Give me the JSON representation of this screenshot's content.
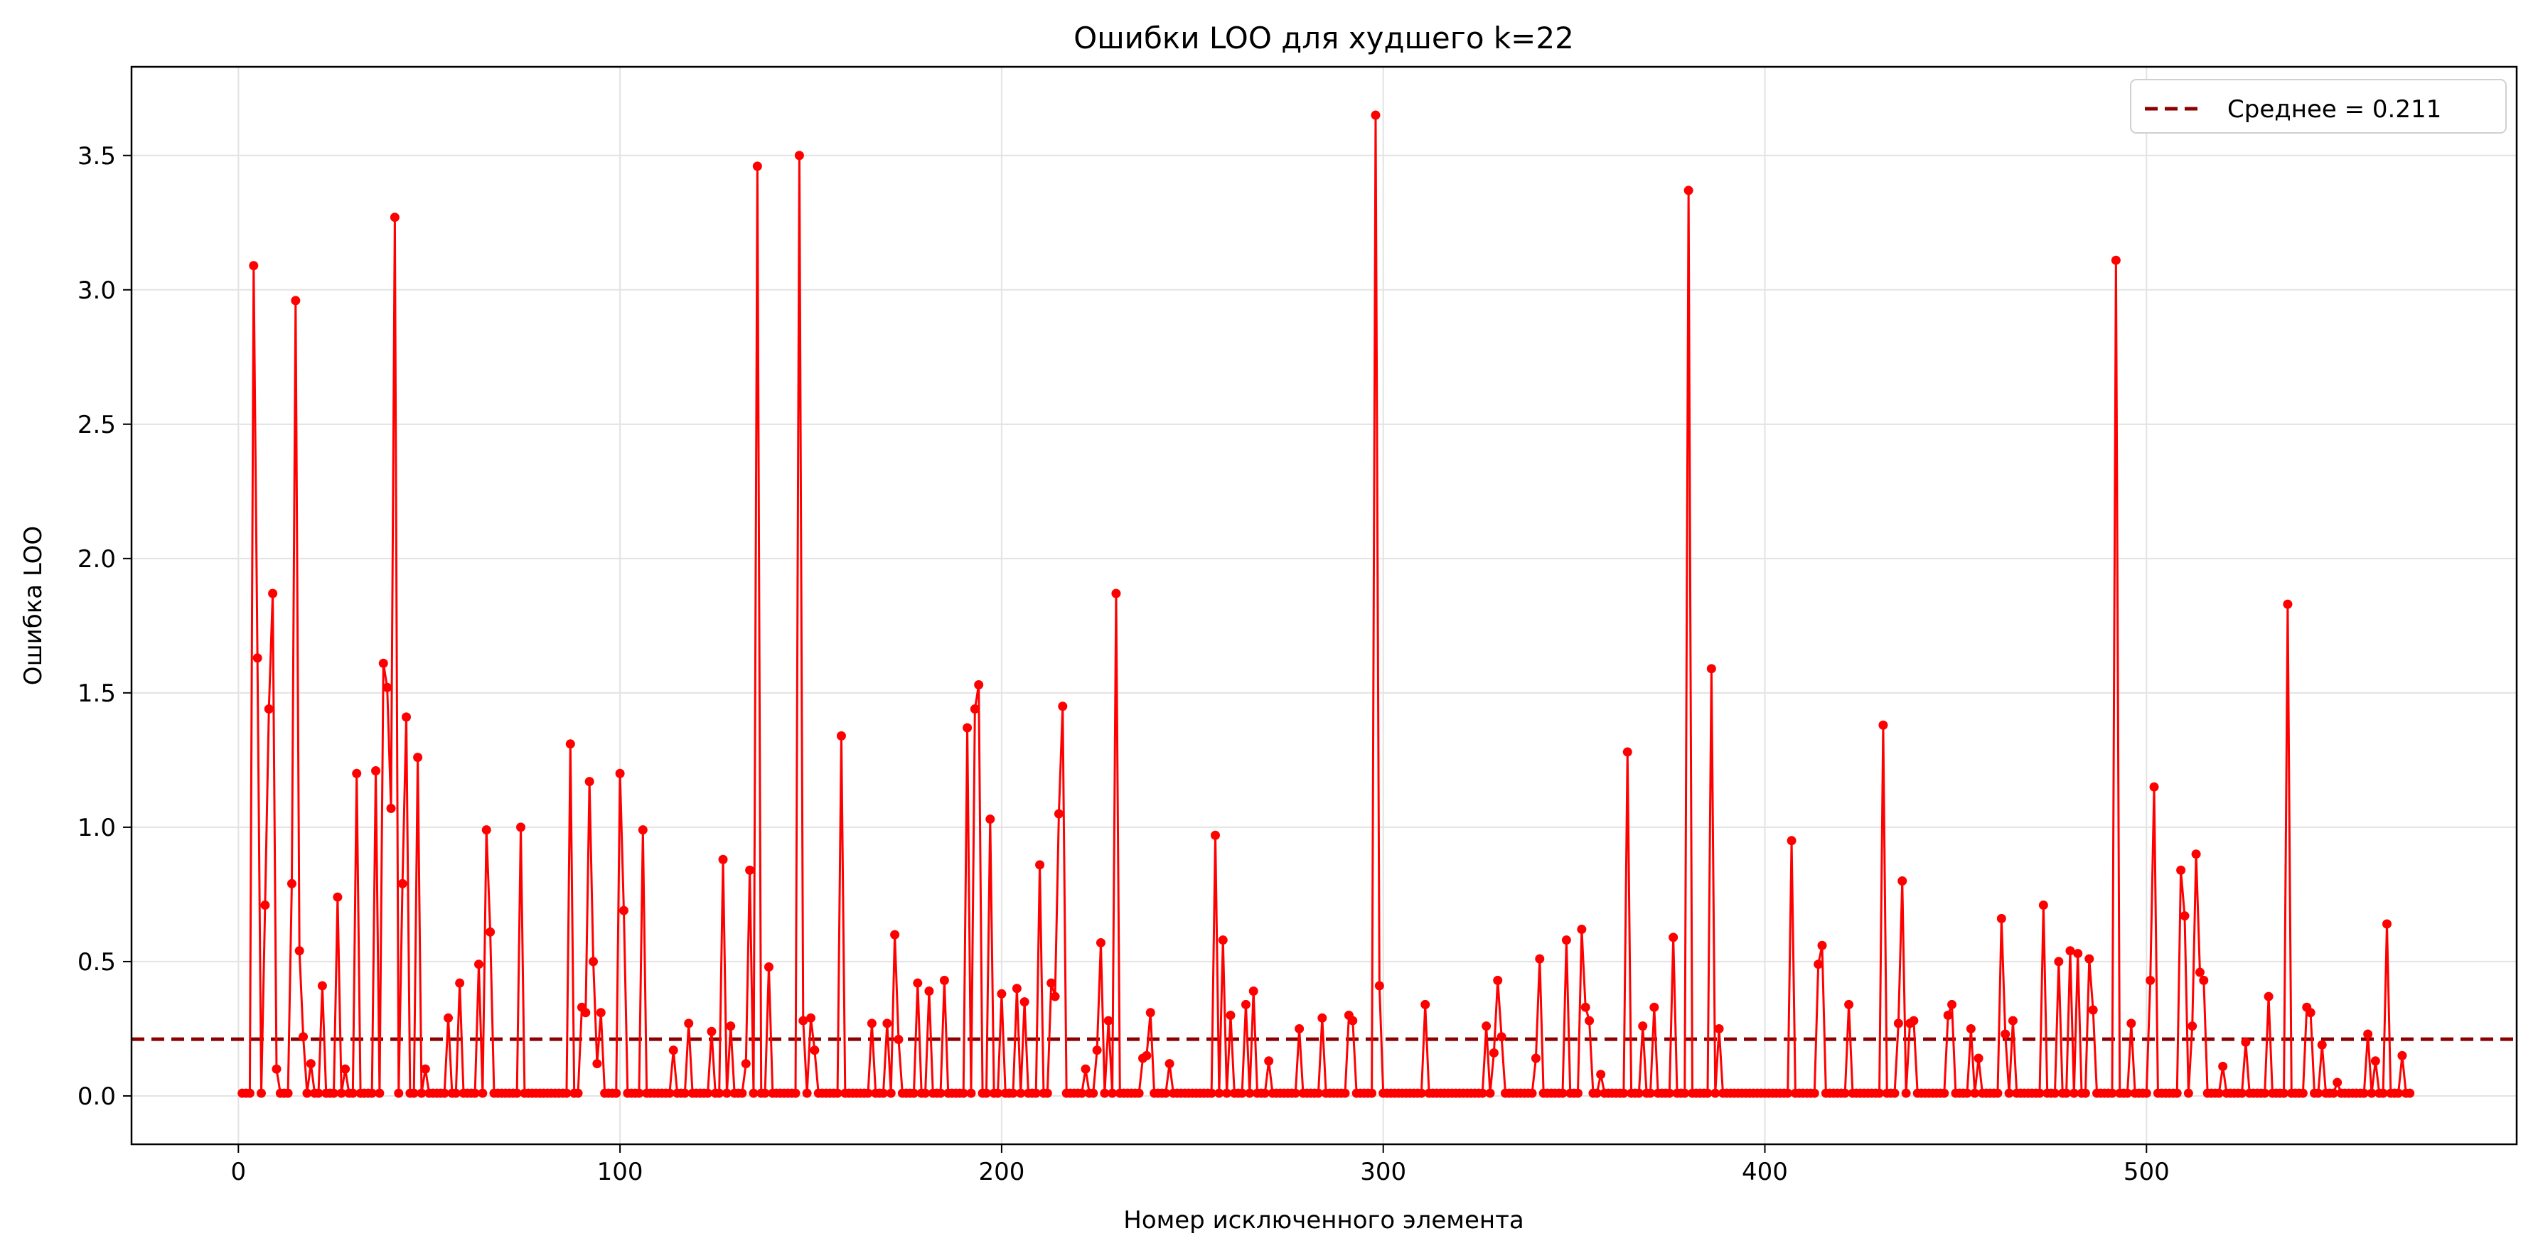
{
  "chart_data": {
    "type": "line",
    "title": "Ошибки LOO для худшего k=22",
    "xlabel": "Номер исключенного элемента",
    "ylabel": "Ошибка LOO",
    "xlim": [
      -28,
      597
    ],
    "ylim": [
      -0.18,
      3.83
    ],
    "x_ticks": [
      0,
      100,
      200,
      300,
      400,
      500
    ],
    "y_ticks": [
      0.0,
      0.5,
      1.0,
      1.5,
      2.0,
      2.5,
      3.0,
      3.5
    ],
    "x_tick_labels": [
      "0",
      "100",
      "200",
      "300",
      "400",
      "500"
    ],
    "y_tick_labels": [
      "0.0",
      "0.5",
      "1.0",
      "1.5",
      "2.0",
      "2.5",
      "3.0",
      "3.5"
    ],
    "grid": true,
    "legend_position": "top-right",
    "legend": [
      {
        "label": "Среднее = 0.211",
        "style": "dashed",
        "color": "#8b0000"
      }
    ],
    "mean_line": {
      "value": 0.211,
      "color": "#8b0000",
      "style": "dashed"
    },
    "series": [
      {
        "color": "#ff0000",
        "marker": "circle",
        "x_start": 1,
        "x_step": 1,
        "count": 569,
        "default_value": 0.01,
        "peaks": [
          [
            4,
            3.09
          ],
          [
            5,
            1.63
          ],
          [
            7,
            0.71
          ],
          [
            8,
            1.44
          ],
          [
            9,
            1.87
          ],
          [
            10,
            0.1
          ],
          [
            14,
            0.79
          ],
          [
            15,
            2.96
          ],
          [
            16,
            0.54
          ],
          [
            17,
            0.22
          ],
          [
            19,
            0.12
          ],
          [
            22,
            0.41
          ],
          [
            26,
            0.74
          ],
          [
            28,
            0.1
          ],
          [
            31,
            1.2
          ],
          [
            36,
            1.21
          ],
          [
            38,
            1.61
          ],
          [
            39,
            1.52
          ],
          [
            40,
            1.07
          ],
          [
            41,
            3.27
          ],
          [
            43,
            0.79
          ],
          [
            44,
            1.41
          ],
          [
            47,
            1.26
          ],
          [
            49,
            0.1
          ],
          [
            55,
            0.29
          ],
          [
            58,
            0.42
          ],
          [
            63,
            0.49
          ],
          [
            65,
            0.99
          ],
          [
            66,
            0.61
          ],
          [
            74,
            1.0
          ],
          [
            87,
            1.31
          ],
          [
            90,
            0.33
          ],
          [
            91,
            0.31
          ],
          [
            92,
            1.17
          ],
          [
            93,
            0.5
          ],
          [
            95,
            0.31
          ],
          [
            94,
            0.12
          ],
          [
            100,
            1.2
          ],
          [
            101,
            0.69
          ],
          [
            106,
            0.99
          ],
          [
            114,
            0.17
          ],
          [
            118,
            0.27
          ],
          [
            124,
            0.24
          ],
          [
            127,
            0.88
          ],
          [
            129,
            0.26
          ],
          [
            133,
            0.12
          ],
          [
            134,
            0.84
          ],
          [
            136,
            3.46
          ],
          [
            139,
            0.48
          ],
          [
            147,
            3.5
          ],
          [
            148,
            0.28
          ],
          [
            150,
            0.29
          ],
          [
            151,
            0.17
          ],
          [
            158,
            1.34
          ],
          [
            166,
            0.27
          ],
          [
            170,
            0.27
          ],
          [
            172,
            0.6
          ],
          [
            173,
            0.21
          ],
          [
            178,
            0.42
          ],
          [
            181,
            0.39
          ],
          [
            185,
            0.43
          ],
          [
            191,
            1.37
          ],
          [
            193,
            1.44
          ],
          [
            194,
            1.53
          ],
          [
            197,
            1.03
          ],
          [
            200,
            0.38
          ],
          [
            204,
            0.4
          ],
          [
            206,
            0.35
          ],
          [
            210,
            0.86
          ],
          [
            213,
            0.42
          ],
          [
            215,
            1.05
          ],
          [
            216,
            1.45
          ],
          [
            214,
            0.37
          ],
          [
            222,
            0.1
          ],
          [
            225,
            0.17
          ],
          [
            226,
            0.57
          ],
          [
            228,
            0.28
          ],
          [
            230,
            1.87
          ],
          [
            237,
            0.14
          ],
          [
            238,
            0.15
          ],
          [
            239,
            0.31
          ],
          [
            244,
            0.12
          ],
          [
            256,
            0.97
          ],
          [
            258,
            0.58
          ],
          [
            260,
            0.3
          ],
          [
            264,
            0.34
          ],
          [
            266,
            0.39
          ],
          [
            270,
            0.13
          ],
          [
            278,
            0.25
          ],
          [
            284,
            0.29
          ],
          [
            291,
            0.3
          ],
          [
            292,
            0.28
          ],
          [
            298,
            3.65
          ],
          [
            299,
            0.41
          ],
          [
            311,
            0.34
          ],
          [
            327,
            0.26
          ],
          [
            329,
            0.16
          ],
          [
            330,
            0.43
          ],
          [
            331,
            0.22
          ],
          [
            340,
            0.14
          ],
          [
            341,
            0.51
          ],
          [
            348,
            0.58
          ],
          [
            352,
            0.62
          ],
          [
            353,
            0.33
          ],
          [
            354,
            0.28
          ],
          [
            357,
            0.08
          ],
          [
            364,
            1.28
          ],
          [
            368,
            0.26
          ],
          [
            371,
            0.33
          ],
          [
            376,
            0.59
          ],
          [
            380,
            3.37
          ],
          [
            386,
            1.59
          ],
          [
            388,
            0.25
          ],
          [
            407,
            0.95
          ],
          [
            414,
            0.49
          ],
          [
            415,
            0.56
          ],
          [
            422,
            0.34
          ],
          [
            431,
            1.38
          ],
          [
            435,
            0.27
          ],
          [
            436,
            0.8
          ],
          [
            438,
            0.27
          ],
          [
            439,
            0.28
          ],
          [
            448,
            0.3
          ],
          [
            449,
            0.34
          ],
          [
            454,
            0.25
          ],
          [
            456,
            0.14
          ],
          [
            462,
            0.66
          ],
          [
            463,
            0.23
          ],
          [
            465,
            0.28
          ],
          [
            473,
            0.71
          ],
          [
            477,
            0.5
          ],
          [
            480,
            0.54
          ],
          [
            482,
            0.53
          ],
          [
            485,
            0.51
          ],
          [
            486,
            0.32
          ],
          [
            492,
            3.11
          ],
          [
            496,
            0.27
          ],
          [
            501,
            0.43
          ],
          [
            502,
            1.15
          ],
          [
            509,
            0.84
          ],
          [
            510,
            0.67
          ],
          [
            512,
            0.26
          ],
          [
            513,
            0.9
          ],
          [
            514,
            0.46
          ],
          [
            515,
            0.43
          ],
          [
            520,
            0.11
          ],
          [
            526,
            0.2
          ],
          [
            532,
            0.37
          ],
          [
            537,
            1.83
          ],
          [
            542,
            0.33
          ],
          [
            543,
            0.31
          ],
          [
            546,
            0.19
          ],
          [
            550,
            0.05
          ],
          [
            558,
            0.23
          ],
          [
            560,
            0.13
          ],
          [
            563,
            0.64
          ],
          [
            567,
            0.15
          ]
        ]
      }
    ]
  }
}
